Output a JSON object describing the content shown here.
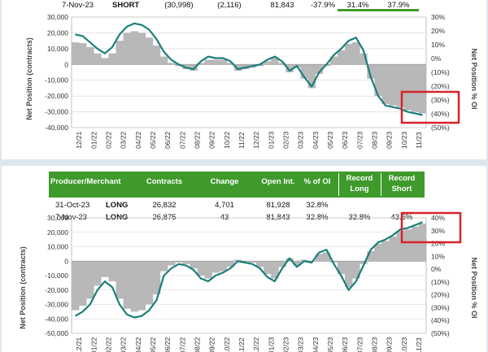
{
  "colors": {
    "line": "#1a7f7a",
    "area": "#b8b8b8",
    "header_green": "#3f9a2c",
    "highlight_box": "#d8232a",
    "negative_red": "#c0392b",
    "grid": "#d6d6d6"
  },
  "top_table": {
    "row": [
      "7-Nov-23",
      "SHORT",
      "(30,998)",
      "(2,116)",
      "81,843",
      "-37.9%",
      "31.4%",
      "37.9%"
    ]
  },
  "bottom_table": {
    "headers": [
      "Producer/Merchant",
      "Contracts",
      "Change",
      "Open Int.",
      "% of OI",
      "Record Long",
      "Record Short"
    ],
    "rows": [
      [
        "31-Oct-23",
        "LONG",
        "26,832",
        "4,701",
        "81,928",
        "32.8%",
        "",
        ""
      ],
      [
        "7-Nov-23",
        "LONG",
        "26,875",
        "43",
        "81,843",
        "32.8%",
        "32.8%",
        "43.6%"
      ]
    ]
  },
  "chart_data": [
    {
      "type": "area",
      "ylabel": "Net Position (contracts)",
      "y2label": "Net Position % OI",
      "ylim": [
        -40000,
        30000
      ],
      "y2lim": [
        -50,
        30
      ],
      "yticks": [
        "30,000",
        "20,000",
        "10,000",
        "0",
        "-10,000",
        "-20,000",
        "-30,000",
        "-40,000"
      ],
      "y2ticks": [
        "30%",
        "20%",
        "10%",
        "0%",
        "(10%)",
        "(20%)",
        "(30%)",
        "(40%)",
        "(50%)"
      ],
      "xticks": [
        "12/21",
        "01/22",
        "02/22",
        "03/22",
        "04/22",
        "05/22",
        "06/22",
        "07/22",
        "08/22",
        "09/22",
        "10/22",
        "11/22",
        "12/22",
        "01/23",
        "02/23",
        "03/23",
        "04/23",
        "05/23",
        "06/23",
        "07/23",
        "08/23",
        "09/23",
        "10/23",
        "11/23"
      ],
      "x": [
        0,
        0.5,
        1,
        1.5,
        2,
        2.5,
        3,
        3.5,
        4,
        4.5,
        5,
        5.5,
        6,
        6.5,
        7,
        7.5,
        8,
        8.5,
        9,
        9.5,
        10,
        10.5,
        11,
        11.5,
        12,
        12.5,
        13,
        13.5,
        14,
        14.5,
        15,
        15.5,
        16,
        16.5,
        17,
        17.5,
        18,
        18.5,
        19,
        19.5,
        20,
        20.5,
        21,
        21.5,
        22,
        22.5,
        23,
        23.5
      ],
      "series": [
        {
          "values": [
            19000,
            18000,
            14000,
            10000,
            7000,
            11000,
            19000,
            24000,
            26000,
            25000,
            22000,
            16000,
            8000,
            3000,
            0,
            -2000,
            -3000,
            2000,
            5000,
            4000,
            4000,
            2000,
            -3000,
            -2000,
            -1000,
            0,
            3000,
            5000,
            2000,
            -4000,
            -1000,
            -8000,
            -14000,
            -5000,
            0,
            6000,
            10000,
            15000,
            17000,
            9000,
            -8000,
            -20000,
            -26000,
            -27000,
            -28000,
            -30000,
            -31000,
            -32000
          ]
        },
        {
          "values": [
            14000,
            13500,
            11000,
            7000,
            4000,
            7000,
            15000,
            20000,
            21000,
            20000,
            17000,
            12000,
            5000,
            1000,
            -1000,
            -3000,
            -4000,
            1000,
            3000,
            3000,
            3000,
            1000,
            -4000,
            -3000,
            -2000,
            -1000,
            2000,
            4000,
            1000,
            -5000,
            -2000,
            -9000,
            -15000,
            -6000,
            -1000,
            5000,
            9000,
            13000,
            14000,
            7000,
            -9000,
            -20000,
            -25000,
            -26000,
            -27000,
            -29000,
            -30000,
            -31000
          ]
        }
      ]
    },
    {
      "type": "area",
      "ylabel": "Net Position (contracts)",
      "y2label": "Net Position % OI",
      "ylim": [
        -50000,
        30000
      ],
      "y2lim": [
        -50,
        40
      ],
      "yticks": [
        "30,000",
        "20,000",
        "10,000",
        "0",
        "-10,000",
        "-20,000",
        "-30,000",
        "-40,000",
        "-50,000"
      ],
      "y2ticks": [
        "40%",
        "30%",
        "20%",
        "10%",
        "0%",
        "(10%)",
        "(20%)",
        "(30%)",
        "(40%)",
        "(50%)"
      ],
      "xticks": [
        "12/21",
        "01/22",
        "02/22",
        "03/22",
        "04/22",
        "05/22",
        "06/22",
        "07/22",
        "08/22",
        "09/22",
        "10/22",
        "11/22",
        "12/22",
        "01/23",
        "02/23",
        "03/23",
        "04/23",
        "05/23",
        "06/23",
        "07/23",
        "08/23",
        "09/23",
        "10/23",
        "11/23"
      ],
      "x": [
        0,
        0.5,
        1,
        1.5,
        2,
        2.5,
        3,
        3.5,
        4,
        4.5,
        5,
        5.5,
        6,
        6.5,
        7,
        7.5,
        8,
        8.5,
        9,
        9.5,
        10,
        10.5,
        11,
        11.5,
        12,
        12.5,
        13,
        13.5,
        14,
        14.5,
        15,
        15.5,
        16,
        16.5,
        17,
        17.5,
        18,
        18.5,
        19,
        19.5,
        20,
        20.5,
        21,
        21.5,
        22,
        22.5,
        23,
        23.5
      ],
      "series": [
        {
          "values": [
            -38000,
            -35000,
            -30000,
            -20000,
            -14000,
            -18000,
            -30000,
            -37000,
            -39000,
            -38000,
            -34000,
            -27000,
            -10000,
            -5000,
            -2000,
            -3000,
            -6000,
            -12000,
            -14000,
            -10000,
            -8000,
            -5000,
            0,
            -1000,
            -2000,
            -5000,
            -11000,
            -14000,
            -5000,
            2000,
            -4000,
            0,
            -1000,
            6000,
            8000,
            -2000,
            -10000,
            -20000,
            -14000,
            -3000,
            8000,
            13000,
            15000,
            18000,
            22000,
            23000,
            25000,
            27000
          ]
        },
        {
          "values": [
            -34000,
            -31000,
            -26000,
            -17000,
            -11000,
            -14000,
            -26000,
            -33000,
            -35000,
            -34000,
            -30000,
            -23000,
            -7000,
            -3000,
            -1000,
            -2000,
            -5000,
            -10000,
            -12000,
            -8000,
            -7000,
            -4000,
            1000,
            0,
            -1000,
            -4000,
            -9000,
            -12000,
            -4000,
            2000,
            -3000,
            1000,
            0,
            5000,
            6000,
            -1000,
            -9000,
            -18000,
            -12000,
            -2000,
            7000,
            12000,
            14000,
            17000,
            21000,
            22000,
            24000,
            26000
          ]
        }
      ]
    }
  ]
}
